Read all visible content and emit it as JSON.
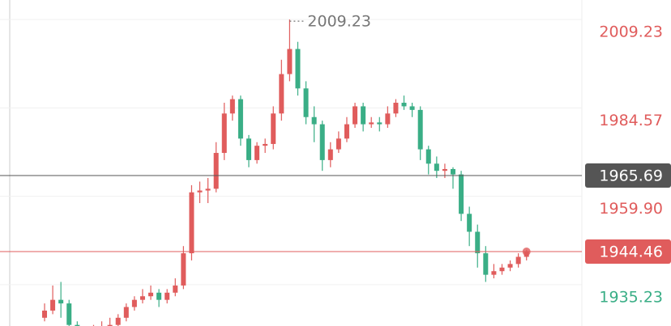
{
  "chart_data": {
    "type": "candlestick",
    "open": [
      1926,
      1928,
      1931,
      1930,
      1924,
      1922,
      1921,
      1922,
      1923,
      1924,
      1926,
      1929,
      1931,
      1932,
      1933,
      1931,
      1933,
      1935,
      1944,
      1961,
      1961.5,
      1962,
      1972,
      1983,
      1987,
      1976,
      1970,
      1974,
      1974.5,
      1983,
      1994,
      2001,
      1990,
      1982,
      1980,
      1970,
      1973,
      1976,
      1980,
      1985,
      1980,
      1980.5,
      1980,
      1983,
      1986,
      1985,
      1984,
      1973,
      1969,
      1967,
      1967.5,
      1966,
      1955,
      1950,
      1944,
      1938,
      1939,
      1940,
      1941,
      1943
    ],
    "high": [
      1930,
      1935,
      1936,
      1931,
      1925,
      1923,
      1924,
      1925,
      1926,
      1927,
      1930,
      1932,
      1934,
      1935,
      1934,
      1934,
      1937,
      1946,
      1963,
      1964,
      1965,
      1975,
      1986,
      1988,
      1988,
      1977,
      1975,
      1976,
      1985,
      1998,
      2009.23,
      2003,
      1992,
      1985,
      1981,
      1975,
      1978,
      1982,
      1986,
      1986,
      1982,
      1982,
      1985,
      1987,
      1988,
      1986,
      1985,
      1974,
      1971,
      1969,
      1968,
      1967,
      1957,
      1952,
      1946,
      1941,
      1941,
      1942,
      1944,
      1945
    ],
    "low": [
      1925,
      1927,
      1926,
      1922,
      1920,
      1919,
      1920,
      1921,
      1922,
      1923,
      1925,
      1928,
      1930,
      1931,
      1929,
      1930,
      1932,
      1934,
      1942,
      1958,
      1958,
      1961,
      1970,
      1981,
      1974,
      1968,
      1969,
      1972,
      1973,
      1981,
      1992,
      1988,
      1980,
      1975,
      1967,
      1968,
      1972,
      1975,
      1979,
      1978,
      1979,
      1978,
      1979,
      1982,
      1984,
      1982,
      1970,
      1966,
      1965,
      1965,
      1962,
      1953,
      1946,
      1940,
      1936,
      1937,
      1938,
      1939,
      1940,
      1942
    ],
    "close": [
      1928,
      1931,
      1930,
      1924,
      1922,
      1921,
      1922,
      1923,
      1924,
      1926,
      1929,
      1931,
      1932,
      1933,
      1931,
      1933,
      1935,
      1944,
      1961,
      1961.5,
      1962,
      1972,
      1983,
      1987,
      1976,
      1970,
      1974,
      1974.5,
      1983,
      1994,
      2001,
      1990,
      1982,
      1980,
      1970,
      1973,
      1976,
      1980,
      1985,
      1980,
      1980.5,
      1980,
      1983,
      1986,
      1985,
      1984,
      1973,
      1969,
      1967,
      1967.5,
      1966,
      1955,
      1950,
      1944,
      1938,
      1939,
      1940,
      1941,
      1943,
      1944.46
    ],
    "up_color": "#e05c5c",
    "down_color": "#3aae86",
    "ylim": [
      1923.7,
      2014.67
    ],
    "yticks": [
      2009.23,
      1984.57,
      {
        "value": 1959.9,
        "label": "1959.90"
      },
      1935.23
    ],
    "grid": true,
    "price_lines": [
      {
        "value": 1965.69,
        "color": "#555555"
      },
      {
        "value": 1944.46,
        "color": "#e05c5c"
      }
    ]
  }
}
